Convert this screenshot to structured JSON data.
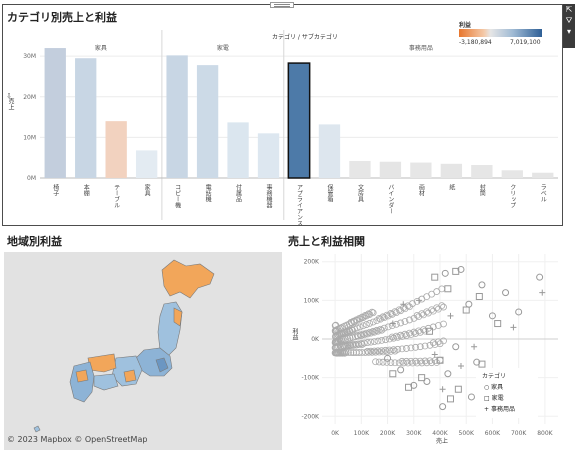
{
  "top_chart": {
    "title": "カテゴリ別売上と利益",
    "header": "カテゴリ / サブカテゴリ",
    "y_axis_label": "売上",
    "y_ticks": [
      "30M",
      "20M",
      "10M",
      "0M"
    ],
    "legend": {
      "title": "利益",
      "min": "-3,180,894",
      "max": "7,019,100"
    }
  },
  "sidebar_icons": [
    "popout-icon",
    "filter-icon",
    "more-icon"
  ],
  "map_panel": {
    "title": "地域別利益",
    "attribution": "© 2023 Mapbox © OpenStreetMap"
  },
  "scatter_panel": {
    "title": "売上と利益相関",
    "x_label": "売上",
    "y_label": "利益",
    "x_ticks": [
      "0K",
      "100K",
      "200K",
      "300K",
      "400K",
      "500K",
      "600K",
      "700K",
      "800K"
    ],
    "y_ticks": [
      "200K",
      "100K",
      "0K",
      "-100K",
      "-200K"
    ],
    "legend": {
      "title": "カテゴリ",
      "items": [
        "家具",
        "家電",
        "事務用品"
      ]
    }
  },
  "chart_data": [
    {
      "type": "bar",
      "title": "カテゴリ別売上と利益",
      "ylabel": "売上",
      "ylim": [
        0,
        33000000
      ],
      "groups": [
        "家具",
        "家電",
        "事務用品"
      ],
      "categories": [
        "椅子",
        "本棚",
        "テーブル",
        "家具",
        "コピー機",
        "電話機",
        "付属品",
        "事務機器",
        "アプライアンス",
        "保管箱",
        "文房具",
        "バインダー",
        "画材",
        "紙",
        "封筒",
        "クリップ",
        "ラベル"
      ],
      "group_of": [
        0,
        0,
        0,
        0,
        1,
        1,
        1,
        1,
        2,
        2,
        2,
        2,
        2,
        2,
        2,
        2,
        2
      ],
      "values": [
        32000000,
        29500000,
        14000000,
        6800000,
        30200000,
        27800000,
        13700000,
        11000000,
        28300000,
        13200000,
        4200000,
        4000000,
        3800000,
        3500000,
        3200000,
        1900000,
        1300000
      ],
      "colors": [
        "#c3cedd",
        "#c8d6e4",
        "#f2d2bf",
        "#e3ebf2",
        "#c8d6e4",
        "#ccdae7",
        "#dbe6ef",
        "#dde7f0",
        "#4d7aa8",
        "#dde6ee",
        "#e6e6e6",
        "#e5e5e5",
        "#e6e6e6",
        "#e5e5e5",
        "#e6e6e6",
        "#e6e6e6",
        "#e5e5e5"
      ],
      "selected_index": 8
    },
    {
      "type": "scatter",
      "title": "売上と利益相関",
      "xlabel": "売上",
      "ylabel": "利益",
      "xlim": [
        -50000,
        850000
      ],
      "ylim": [
        -220000,
        220000
      ],
      "series": [
        {
          "name": "家具",
          "marker": "circle",
          "points": [
            [
              480000,
              180000
            ],
            [
              780000,
              160000
            ],
            [
              560000,
              140000
            ],
            [
              420000,
              170000
            ],
            [
              650000,
              120000
            ],
            [
              510000,
              90000
            ],
            [
              600000,
              60000
            ],
            [
              700000,
              70000
            ],
            [
              460000,
              -20000
            ],
            [
              540000,
              -60000
            ],
            [
              430000,
              -90000
            ],
            [
              350000,
              -110000
            ],
            [
              300000,
              -120000
            ],
            [
              520000,
              -150000
            ],
            [
              600000,
              -160000
            ],
            [
              410000,
              -175000
            ],
            [
              250000,
              -80000
            ],
            [
              200000,
              -50000
            ]
          ]
        },
        {
          "name": "家電",
          "marker": "square",
          "points": [
            [
              460000,
              175000
            ],
            [
              380000,
              160000
            ],
            [
              550000,
              110000
            ],
            [
              430000,
              130000
            ],
            [
              500000,
              75000
            ],
            [
              620000,
              40000
            ],
            [
              400000,
              -55000
            ],
            [
              330000,
              -100000
            ],
            [
              280000,
              -125000
            ],
            [
              470000,
              -130000
            ],
            [
              560000,
              -65000
            ],
            [
              440000,
              -155000
            ],
            [
              600000,
              -110000
            ],
            [
              220000,
              -90000
            ],
            [
              360000,
              20000
            ]
          ]
        },
        {
          "name": "事務用品",
          "marker": "plus",
          "points": [
            [
              790000,
              120000
            ],
            [
              680000,
              30000
            ],
            [
              530000,
              -20000
            ],
            [
              410000,
              -130000
            ],
            [
              320000,
              100000
            ],
            [
              260000,
              90000
            ],
            [
              440000,
              60000
            ],
            [
              380000,
              -40000
            ],
            [
              220000,
              40000
            ],
            [
              480000,
              -70000
            ]
          ]
        }
      ]
    }
  ],
  "colors": {
    "panel_border": "#4d4d4d",
    "profit_negative": "#e8772e",
    "profit_positive": "#2e5f96",
    "selected_bar": "#4d7aa8"
  }
}
